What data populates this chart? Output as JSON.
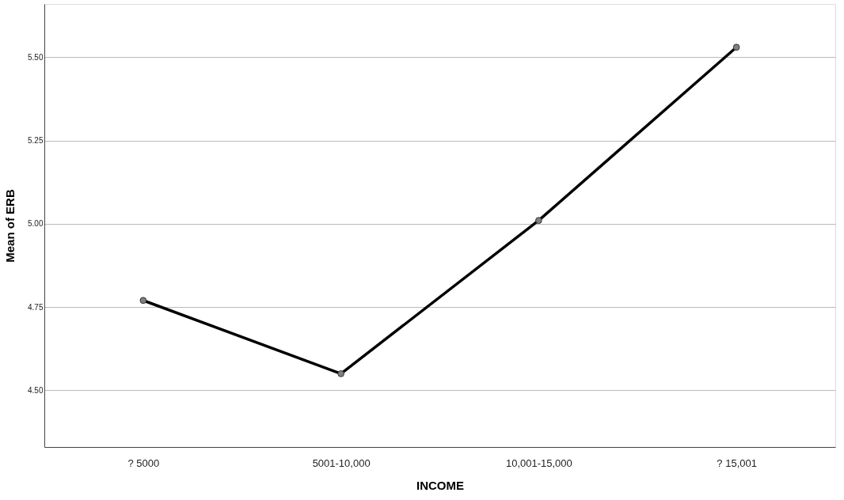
{
  "chart_data": {
    "type": "line",
    "xlabel": "INCOME",
    "ylabel": "Mean of ERB",
    "categories": [
      "? 5000",
      "5001-10,000",
      "10,001-15,000",
      "? 15,001"
    ],
    "series": [
      {
        "color": "#000000",
        "values": [
          4.77,
          4.55,
          5.01,
          5.53
        ]
      }
    ],
    "ylim": [
      4.33,
      5.66
    ],
    "yticks": [
      {
        "value": 4.5,
        "label": "4.50"
      },
      {
        "value": 4.75,
        "label": "4.75"
      },
      {
        "value": 5.0,
        "label": "5.00"
      },
      {
        "value": 5.25,
        "label": "5.25"
      },
      {
        "value": 5.5,
        "label": "5.50"
      }
    ],
    "grid": "y",
    "marker": "circle",
    "line_style": "solid",
    "legend": false
  }
}
